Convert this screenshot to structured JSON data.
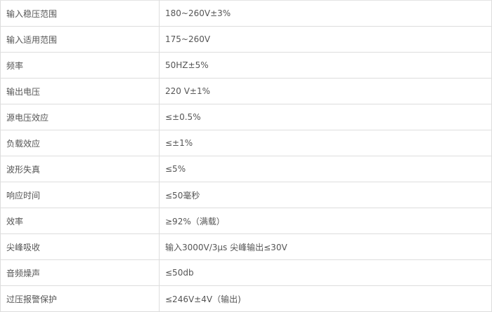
{
  "spec_table": {
    "rows": [
      {
        "label": "输入稳压范围",
        "value": "180~260V±3%"
      },
      {
        "label": "输入适用范围",
        "value": "175~260V"
      },
      {
        "label": "频率",
        "value": "50HZ±5%"
      },
      {
        "label": "输出电压",
        "value": "220 V±1%"
      },
      {
        "label": "源电压效应",
        "value": "≤±0.5%"
      },
      {
        "label": "负载效应",
        "value": "≤±1%"
      },
      {
        "label": "波形失真",
        "value": "≤5%"
      },
      {
        "label": "响应时间",
        "value": "≤50毫秒"
      },
      {
        "label": "效率",
        "value": "≥92%（满载）"
      },
      {
        "label": "尖峰吸收",
        "value": "输入3000V/3μs 尖峰输出≤30V"
      },
      {
        "label": "音频燥声",
        "value": "≤50db"
      },
      {
        "label": "过压报警保护",
        "value": "≤246V±4V（输出)"
      }
    ]
  }
}
